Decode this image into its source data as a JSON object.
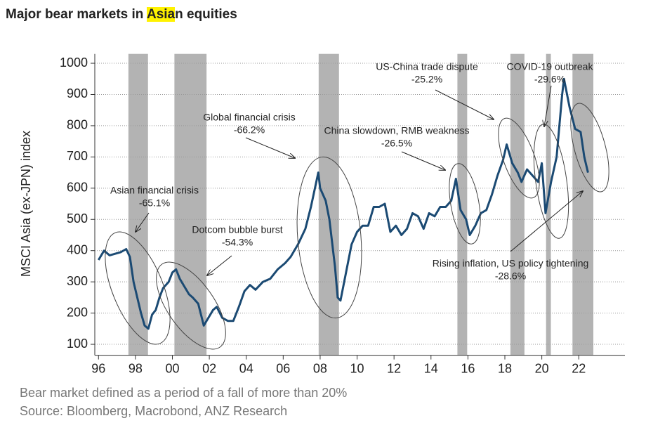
{
  "chart_data": {
    "type": "line",
    "title": "Major bear markets in Asian equities",
    "title_highlight": "Asia",
    "y_label": "MSCI Asia (ex-JPN) index",
    "note": "Bear market defined as a period of a fall of more than 20%",
    "source": "Source: Bloomberg, Macrobond, ANZ Research",
    "xlim": [
      1995.8,
      2024.5
    ],
    "ylim": [
      65,
      1030
    ],
    "xticks": [
      {
        "value": 1996,
        "label": "96"
      },
      {
        "value": 1998,
        "label": "98"
      },
      {
        "value": 2000,
        "label": "00"
      },
      {
        "value": 2002,
        "label": "02"
      },
      {
        "value": 2004,
        "label": "04"
      },
      {
        "value": 2006,
        "label": "06"
      },
      {
        "value": 2008,
        "label": "08"
      },
      {
        "value": 2010,
        "label": "10"
      },
      {
        "value": 2012,
        "label": "12"
      },
      {
        "value": 2014,
        "label": "14"
      },
      {
        "value": 2016,
        "label": "16"
      },
      {
        "value": 2018,
        "label": "18"
      },
      {
        "value": 2020,
        "label": "20"
      },
      {
        "value": 2022,
        "label": "22"
      }
    ],
    "yticks": [
      100,
      200,
      300,
      400,
      500,
      600,
      700,
      800,
      900,
      1000
    ],
    "grid": true,
    "shade_color": "#b3b3b3",
    "shaded_periods": [
      [
        1997.62,
        1998.68
      ],
      [
        2000.11,
        2001.85
      ],
      [
        2007.92,
        2009.02
      ],
      [
        2015.43,
        2015.96
      ],
      [
        2018.3,
        2019.06
      ],
      [
        2020.23,
        2020.49
      ],
      [
        2021.66,
        2022.79
      ]
    ],
    "series": [
      {
        "name": "MSCI Asia (ex-JPN)",
        "color": "#1b4a73",
        "x": [
          1996.0,
          1996.3,
          1996.6,
          1996.9,
          1997.2,
          1997.5,
          1997.7,
          1997.9,
          1998.1,
          1998.3,
          1998.5,
          1998.7,
          1998.9,
          1999.1,
          1999.3,
          1999.5,
          1999.8,
          2000.0,
          2000.2,
          2000.4,
          2000.6,
          2000.9,
          2001.1,
          2001.4,
          2001.7,
          2001.9,
          2002.2,
          2002.4,
          2002.7,
          2003.0,
          2003.3,
          2003.6,
          2003.9,
          2004.2,
          2004.5,
          2004.9,
          2005.3,
          2005.7,
          2006.1,
          2006.4,
          2006.8,
          2007.2,
          2007.5,
          2007.9,
          2008.0,
          2008.3,
          2008.5,
          2008.8,
          2008.95,
          2009.1,
          2009.4,
          2009.7,
          2010.0,
          2010.3,
          2010.6,
          2010.9,
          2011.2,
          2011.5,
          2011.8,
          2012.1,
          2012.4,
          2012.7,
          2013.0,
          2013.3,
          2013.6,
          2013.9,
          2014.2,
          2014.5,
          2014.8,
          2015.1,
          2015.35,
          2015.6,
          2015.9,
          2016.1,
          2016.4,
          2016.7,
          2017.0,
          2017.3,
          2017.6,
          2017.9,
          2018.1,
          2018.4,
          2018.7,
          2018.9,
          2019.2,
          2019.5,
          2019.8,
          2020.0,
          2020.2,
          2020.5,
          2020.8,
          2021.1,
          2021.2,
          2021.5,
          2021.8,
          2022.1,
          2022.3,
          2022.5
        ],
        "values": [
          370,
          400,
          385,
          390,
          395,
          405,
          380,
          300,
          250,
          200,
          160,
          150,
          195,
          210,
          250,
          280,
          300,
          330,
          340,
          310,
          290,
          260,
          250,
          230,
          160,
          180,
          210,
          220,
          185,
          175,
          175,
          220,
          270,
          290,
          275,
          300,
          310,
          340,
          360,
          380,
          420,
          470,
          540,
          650,
          600,
          560,
          500,
          350,
          250,
          240,
          330,
          420,
          460,
          480,
          480,
          540,
          540,
          550,
          460,
          480,
          450,
          470,
          520,
          510,
          470,
          520,
          510,
          540,
          540,
          560,
          630,
          530,
          500,
          450,
          480,
          520,
          530,
          580,
          640,
          690,
          740,
          680,
          650,
          620,
          660,
          640,
          620,
          680,
          520,
          620,
          700,
          900,
          950,
          860,
          790,
          780,
          700,
          650
        ]
      }
    ],
    "annotations": [
      {
        "label": "Asian financial crisis",
        "change": "-65.1%"
      },
      {
        "label": "Dotcom bubble burst",
        "change": "-54.3%"
      },
      {
        "label": "Global financial crisis",
        "change": "-66.2%"
      },
      {
        "label": "China slowdown, RMB weakness",
        "change": "-26.5%"
      },
      {
        "label": "US-China trade dispute",
        "change": "-25.2%"
      },
      {
        "label": "COVID-19 outbreak",
        "change": "-29.6%"
      },
      {
        "label": "Rising inflation, US policy tightening",
        "change": "-28.6%"
      }
    ]
  }
}
